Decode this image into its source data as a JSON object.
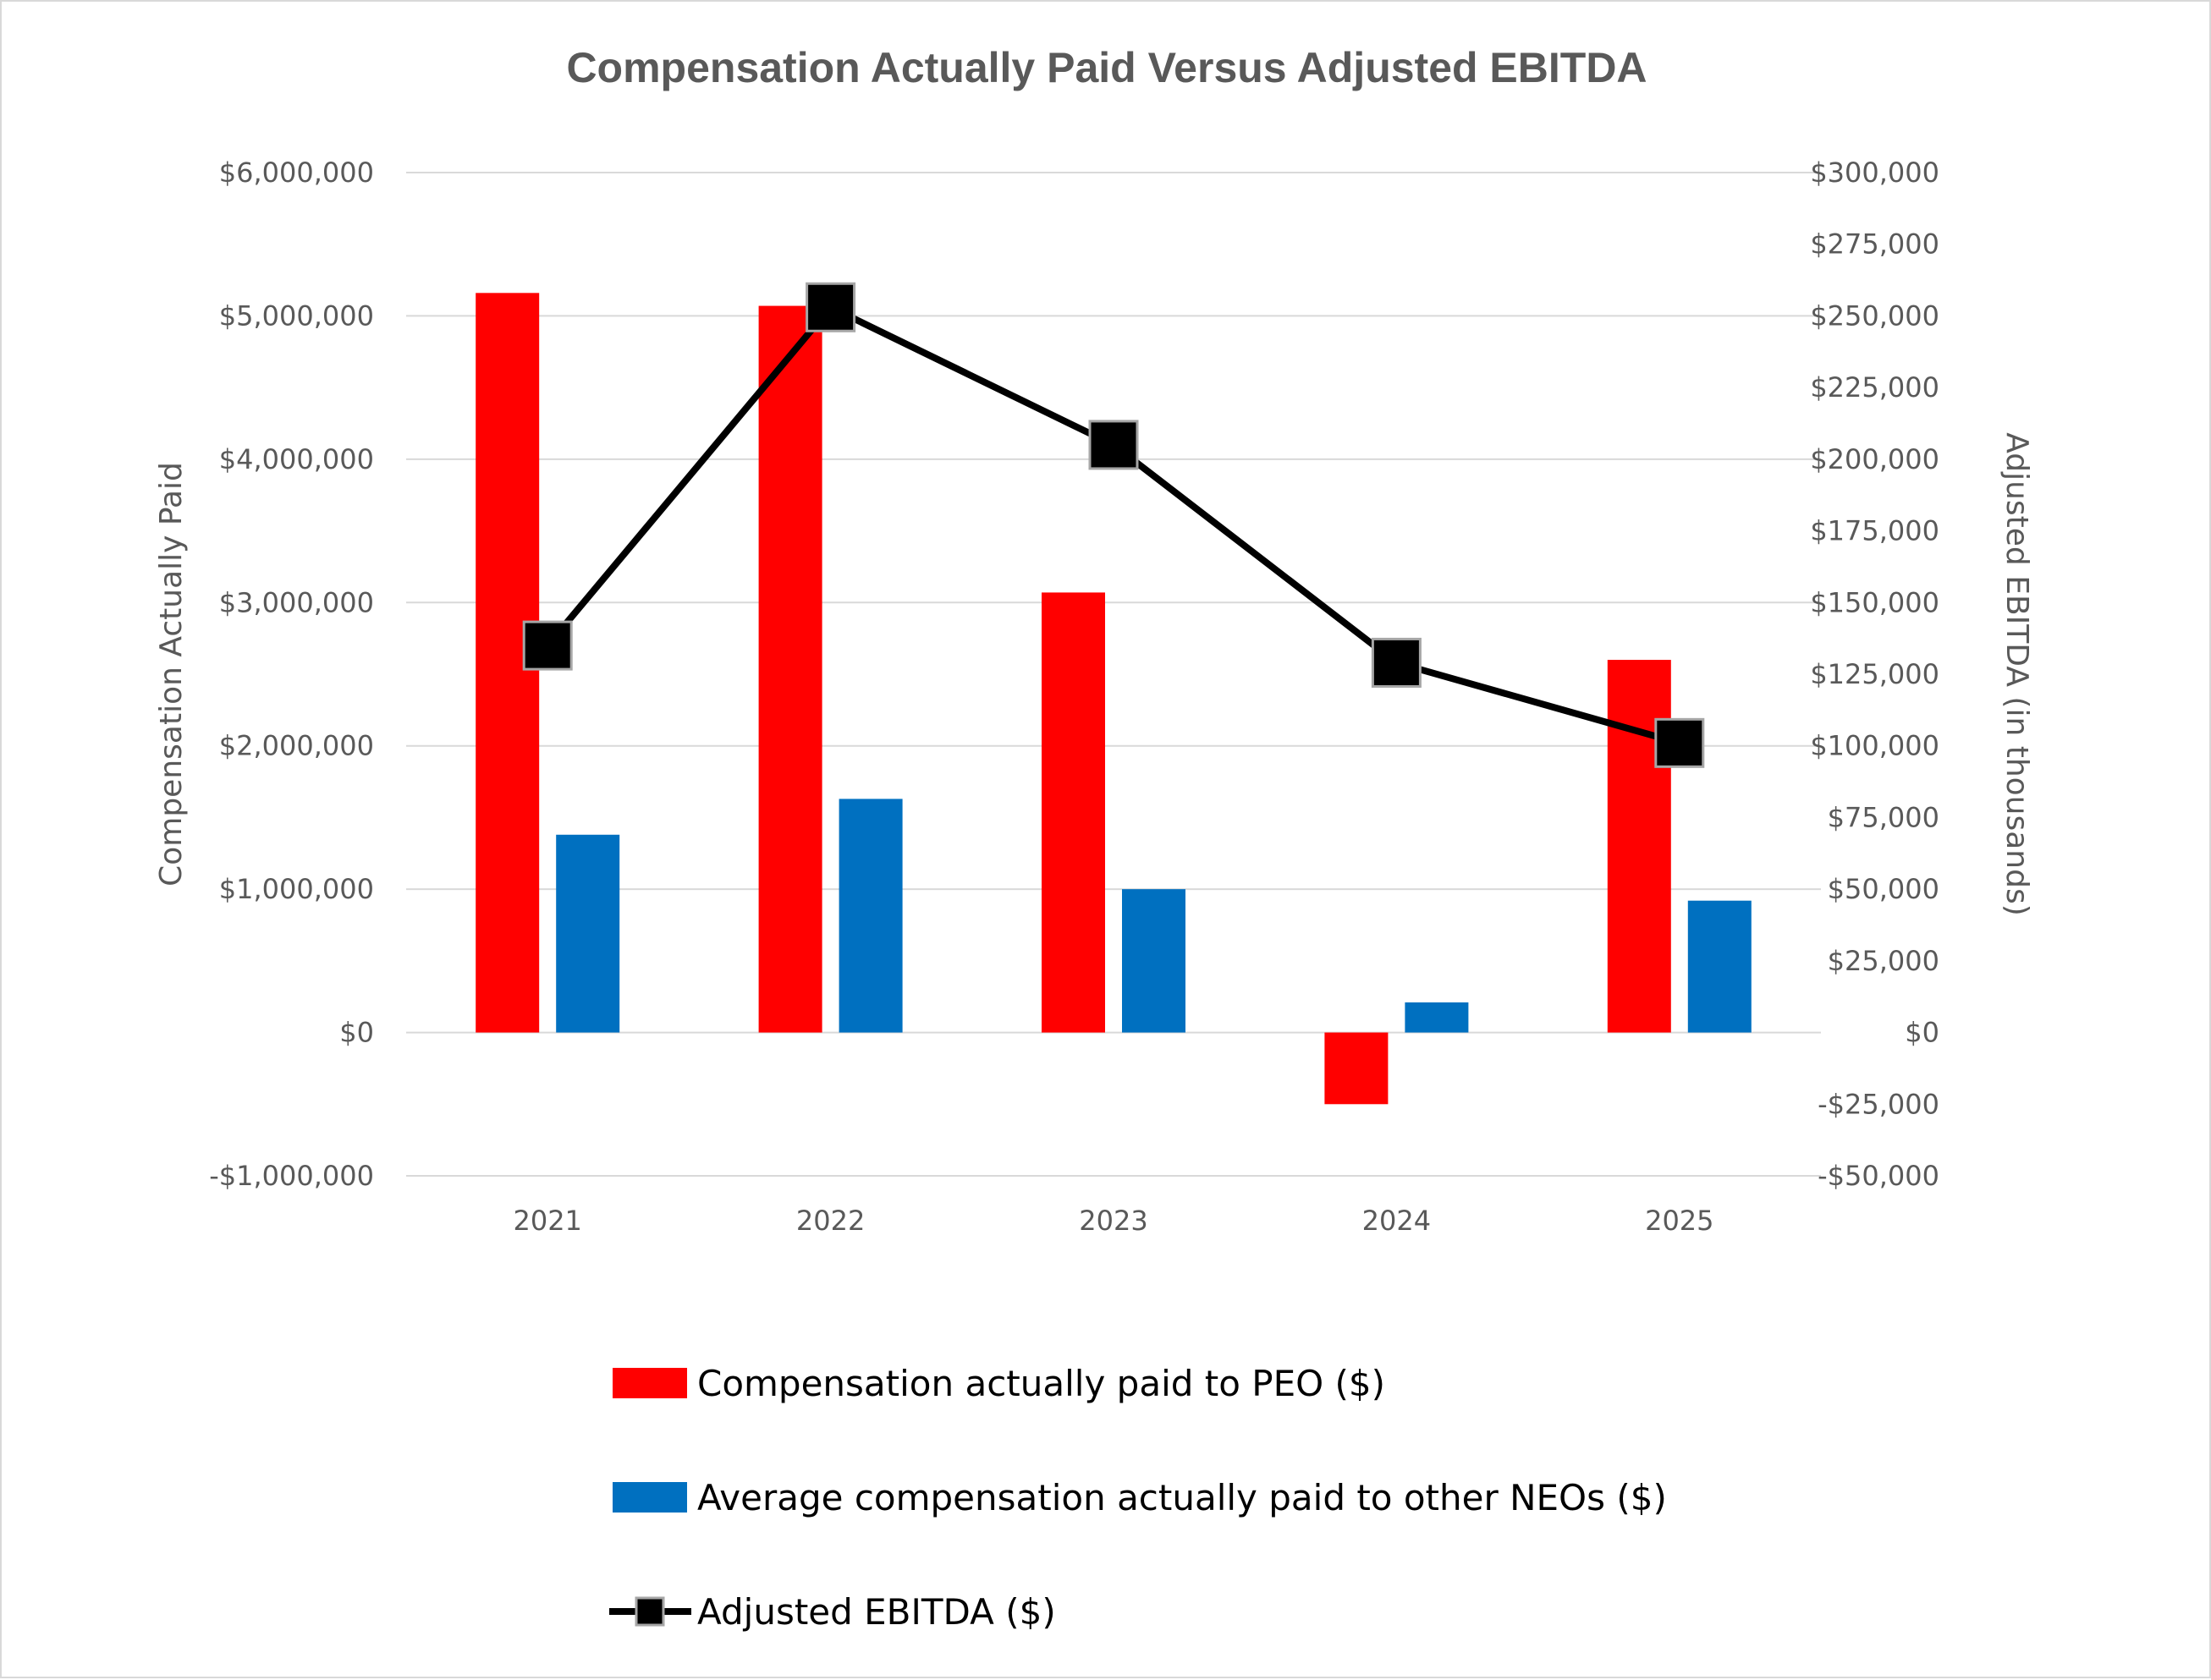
{
  "chart_data": {
    "type": "bar",
    "title": "Compensation Actually Paid Versus Adjusted EBITDA",
    "categories": [
      "2021",
      "2022",
      "2023",
      "2024",
      "2025"
    ],
    "y_left": {
      "label": "Compensation Actually Paid",
      "range": [
        -1000000,
        6000000
      ],
      "ticks": [
        -1000000,
        0,
        1000000,
        2000000,
        3000000,
        4000000,
        5000000,
        6000000
      ],
      "tick_labels": [
        "-$1,000,000",
        "$0",
        "$1,000,000",
        "$2,000,000",
        "$3,000,000",
        "$4,000,000",
        "$5,000,000",
        "$6,000,000"
      ]
    },
    "y_right": {
      "label": "Adjusted EBITDA (in thousands)",
      "range": [
        -50000,
        300000
      ],
      "ticks": [
        -50000,
        -25000,
        0,
        25000,
        50000,
        75000,
        100000,
        125000,
        150000,
        175000,
        200000,
        225000,
        250000,
        275000,
        300000
      ],
      "tick_labels": [
        "-$50,000",
        "-$25,000",
        "$0",
        "$25,000",
        "$50,000",
        "$75,000",
        "$100,000",
        "$125,000",
        "$150,000",
        "$175,000",
        "$200,000",
        "$225,000",
        "$250,000",
        "$275,000",
        "$300,000"
      ]
    },
    "grid": true,
    "legend_position": "bottom",
    "series": [
      {
        "name": "Compensation actually paid to PEO ($)",
        "type": "bar",
        "axis": "left",
        "color": "#FF0000",
        "values": [
          5160000,
          5070000,
          3070000,
          -500000,
          2600000
        ]
      },
      {
        "name": "Average compensation actually paid to other NEOs ($)",
        "type": "bar",
        "axis": "left",
        "color": "#0070C0",
        "values": [
          1380000,
          1630000,
          1000000,
          210000,
          920000
        ]
      },
      {
        "name": "Adjusted EBITDA ($)",
        "type": "line",
        "axis": "right",
        "color": "#000000",
        "marker": "square",
        "values": [
          135000,
          253000,
          205000,
          129000,
          101000
        ]
      }
    ]
  }
}
